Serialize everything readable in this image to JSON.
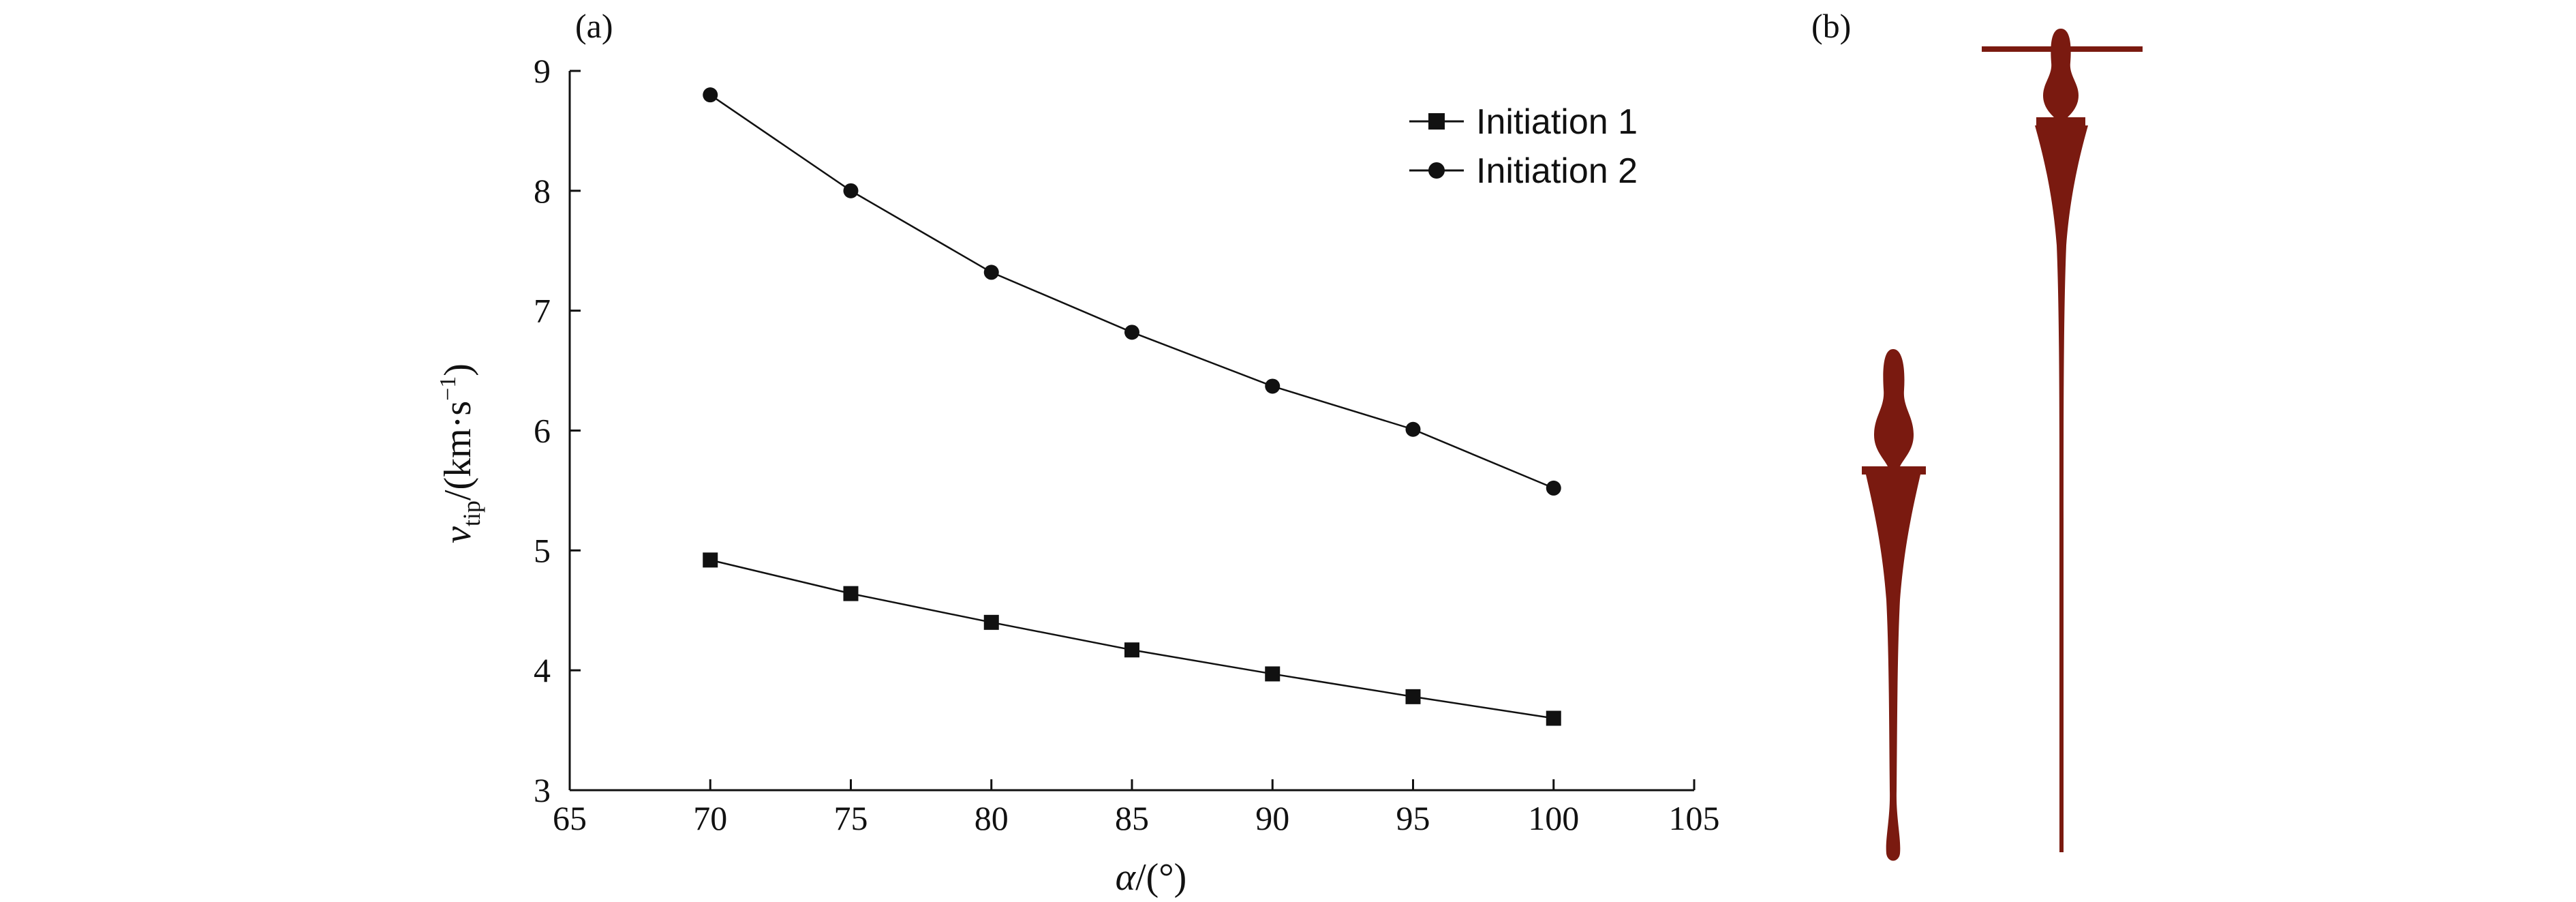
{
  "panels": {
    "a_label": "(a)",
    "b_label": "(b)"
  },
  "chart_data": {
    "type": "line",
    "title": "",
    "xlabel_italic": "α",
    "xlabel_rest": "/(°)",
    "ylabel_main": "v",
    "ylabel_sub": "tip",
    "ylabel_unit": "/(km·s",
    "ylabel_exp": "−1",
    "ylabel_close": ")",
    "xlim": [
      65,
      105
    ],
    "ylim": [
      3,
      9
    ],
    "xticks": [
      65,
      70,
      75,
      80,
      85,
      90,
      95,
      100,
      105
    ],
    "yticks": [
      3,
      4,
      5,
      6,
      7,
      8,
      9
    ],
    "grid": false,
    "legend_position": "top-right",
    "x": [
      70,
      75,
      80,
      85,
      90,
      95,
      100
    ],
    "series": [
      {
        "name": "Initiation 1",
        "marker": "square",
        "values": [
          4.92,
          4.64,
          4.4,
          4.17,
          3.97,
          3.78,
          3.6
        ]
      },
      {
        "name": "Initiation 2",
        "marker": "circle",
        "values": [
          8.8,
          8.0,
          7.32,
          6.82,
          6.37,
          6.01,
          5.52
        ]
      }
    ]
  },
  "jet_image": {
    "description_color": "#7a1a10"
  }
}
